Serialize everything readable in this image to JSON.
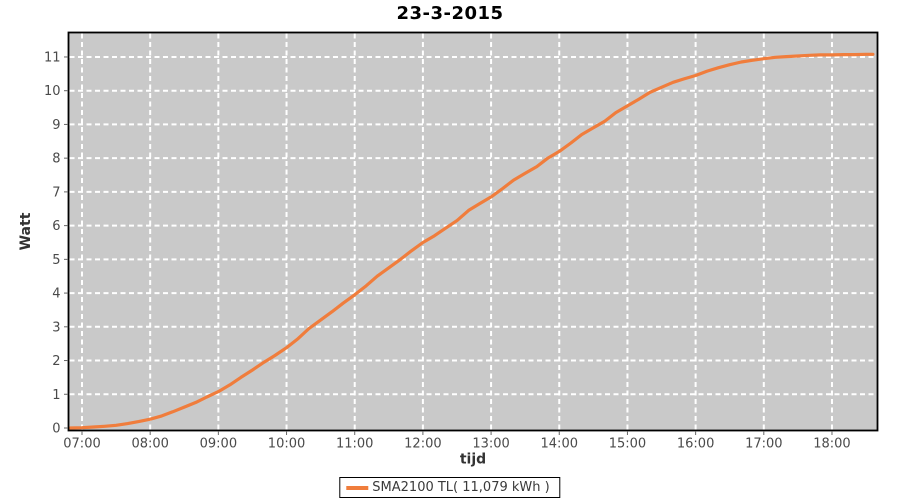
{
  "title": "23-3-2015",
  "colors": {
    "series": "#f07d3c",
    "plot_background": "#c9c9c9",
    "gridline": "#ffffff",
    "axis_border": "#000000",
    "tick_mark": "#666666",
    "tick_label": "#4a4a4a",
    "axis_title": "#333333",
    "page_background": "#ffffff"
  },
  "legend": {
    "label": "SMA2100 TL( 11,079 kWh )"
  },
  "chart_data": {
    "type": "line",
    "title": "23-3-2015",
    "xlabel": "tijd",
    "ylabel": "Watt",
    "x_ticks": [
      {
        "t": 7,
        "label": "07:00"
      },
      {
        "t": 8,
        "label": "08:00"
      },
      {
        "t": 9,
        "label": "09:00"
      },
      {
        "t": 10,
        "label": "10:00"
      },
      {
        "t": 11,
        "label": "11:00"
      },
      {
        "t": 12,
        "label": "12:00"
      },
      {
        "t": 13,
        "label": "13:00"
      },
      {
        "t": 14,
        "label": "14:00"
      },
      {
        "t": 15,
        "label": "15:00"
      },
      {
        "t": 16,
        "label": "16:00"
      },
      {
        "t": 17,
        "label": "17:00"
      },
      {
        "t": 18,
        "label": "18:00"
      }
    ],
    "y_ticks": [
      0,
      1,
      2,
      3,
      4,
      5,
      6,
      7,
      8,
      9,
      10,
      11
    ],
    "xlim_hours": [
      6.8,
      18.65
    ],
    "ylim": [
      0,
      11.7
    ],
    "grid": "white-dashed-both-axes",
    "legend_position": "bottom-center",
    "plot_background": "gray",
    "series": [
      {
        "name": "SMA2100 TL( 11,079 kWh )",
        "color": "#f07d3c",
        "total_kwh_label": "11,079",
        "points": [
          [
            6.83,
            0.0
          ],
          [
            7.0,
            0.01
          ],
          [
            7.17,
            0.03
          ],
          [
            7.33,
            0.05
          ],
          [
            7.5,
            0.08
          ],
          [
            7.67,
            0.13
          ],
          [
            7.83,
            0.19
          ],
          [
            8.0,
            0.26
          ],
          [
            8.17,
            0.36
          ],
          [
            8.33,
            0.48
          ],
          [
            8.5,
            0.62
          ],
          [
            8.67,
            0.76
          ],
          [
            8.83,
            0.92
          ],
          [
            9.0,
            1.08
          ],
          [
            9.17,
            1.28
          ],
          [
            9.33,
            1.5
          ],
          [
            9.5,
            1.72
          ],
          [
            9.67,
            1.95
          ],
          [
            9.83,
            2.15
          ],
          [
            10.0,
            2.38
          ],
          [
            10.17,
            2.65
          ],
          [
            10.33,
            2.95
          ],
          [
            10.5,
            3.2
          ],
          [
            10.67,
            3.45
          ],
          [
            10.83,
            3.7
          ],
          [
            11.0,
            3.95
          ],
          [
            11.17,
            4.22
          ],
          [
            11.33,
            4.5
          ],
          [
            11.5,
            4.75
          ],
          [
            11.67,
            5.0
          ],
          [
            11.83,
            5.25
          ],
          [
            12.0,
            5.5
          ],
          [
            12.17,
            5.7
          ],
          [
            12.33,
            5.92
          ],
          [
            12.5,
            6.15
          ],
          [
            12.67,
            6.45
          ],
          [
            12.83,
            6.65
          ],
          [
            13.0,
            6.85
          ],
          [
            13.17,
            7.1
          ],
          [
            13.33,
            7.35
          ],
          [
            13.5,
            7.55
          ],
          [
            13.67,
            7.75
          ],
          [
            13.83,
            8.0
          ],
          [
            14.0,
            8.2
          ],
          [
            14.17,
            8.45
          ],
          [
            14.33,
            8.7
          ],
          [
            14.5,
            8.9
          ],
          [
            14.67,
            9.1
          ],
          [
            14.83,
            9.35
          ],
          [
            15.0,
            9.55
          ],
          [
            15.17,
            9.75
          ],
          [
            15.33,
            9.95
          ],
          [
            15.5,
            10.1
          ],
          [
            15.67,
            10.25
          ],
          [
            15.83,
            10.35
          ],
          [
            16.0,
            10.45
          ],
          [
            16.17,
            10.58
          ],
          [
            16.33,
            10.68
          ],
          [
            16.5,
            10.77
          ],
          [
            16.67,
            10.85
          ],
          [
            16.83,
            10.9
          ],
          [
            17.0,
            10.95
          ],
          [
            17.17,
            10.99
          ],
          [
            17.33,
            11.01
          ],
          [
            17.5,
            11.03
          ],
          [
            17.67,
            11.05
          ],
          [
            17.83,
            11.06
          ],
          [
            18.0,
            11.06
          ],
          [
            18.17,
            11.07
          ],
          [
            18.33,
            11.07
          ],
          [
            18.5,
            11.08
          ],
          [
            18.6,
            11.08
          ]
        ]
      }
    ]
  }
}
